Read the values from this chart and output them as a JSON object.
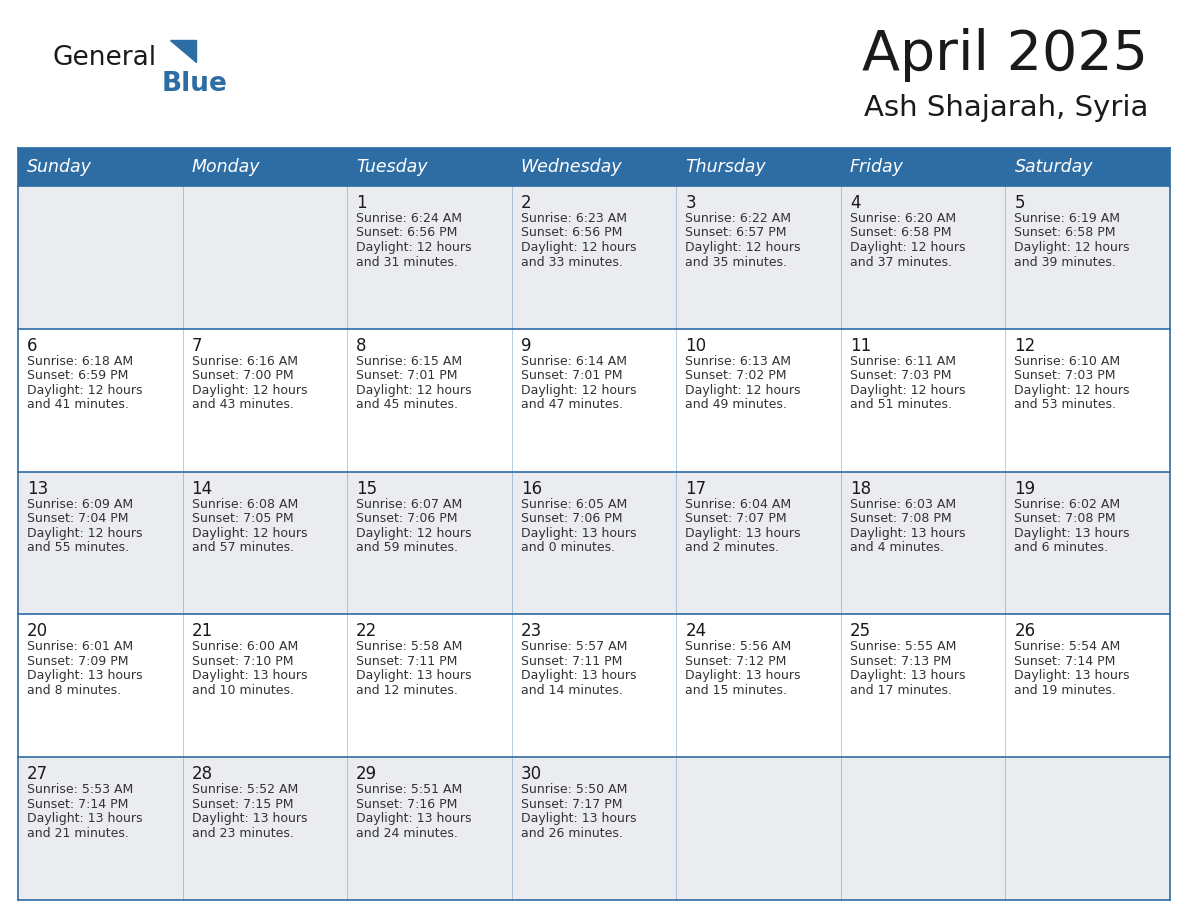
{
  "title": "April 2025",
  "subtitle": "Ash Shajarah, Syria",
  "header_bg_color": "#2E6DA4",
  "header_text_color": "#FFFFFF",
  "day_names": [
    "Sunday",
    "Monday",
    "Tuesday",
    "Wednesday",
    "Thursday",
    "Friday",
    "Saturday"
  ],
  "row_bg_odd": "#EAECF0",
  "row_bg_even": "#FFFFFF",
  "border_color": "#2E6DA4",
  "text_color": "#333333",
  "calendar_data": [
    [
      {
        "day": null,
        "sunrise": null,
        "sunset": null,
        "daylight": null
      },
      {
        "day": null,
        "sunrise": null,
        "sunset": null,
        "daylight": null
      },
      {
        "day": 1,
        "sunrise": "6:24 AM",
        "sunset": "6:56 PM",
        "daylight": "12 hours\nand 31 minutes."
      },
      {
        "day": 2,
        "sunrise": "6:23 AM",
        "sunset": "6:56 PM",
        "daylight": "12 hours\nand 33 minutes."
      },
      {
        "day": 3,
        "sunrise": "6:22 AM",
        "sunset": "6:57 PM",
        "daylight": "12 hours\nand 35 minutes."
      },
      {
        "day": 4,
        "sunrise": "6:20 AM",
        "sunset": "6:58 PM",
        "daylight": "12 hours\nand 37 minutes."
      },
      {
        "day": 5,
        "sunrise": "6:19 AM",
        "sunset": "6:58 PM",
        "daylight": "12 hours\nand 39 minutes."
      }
    ],
    [
      {
        "day": 6,
        "sunrise": "6:18 AM",
        "sunset": "6:59 PM",
        "daylight": "12 hours\nand 41 minutes."
      },
      {
        "day": 7,
        "sunrise": "6:16 AM",
        "sunset": "7:00 PM",
        "daylight": "12 hours\nand 43 minutes."
      },
      {
        "day": 8,
        "sunrise": "6:15 AM",
        "sunset": "7:01 PM",
        "daylight": "12 hours\nand 45 minutes."
      },
      {
        "day": 9,
        "sunrise": "6:14 AM",
        "sunset": "7:01 PM",
        "daylight": "12 hours\nand 47 minutes."
      },
      {
        "day": 10,
        "sunrise": "6:13 AM",
        "sunset": "7:02 PM",
        "daylight": "12 hours\nand 49 minutes."
      },
      {
        "day": 11,
        "sunrise": "6:11 AM",
        "sunset": "7:03 PM",
        "daylight": "12 hours\nand 51 minutes."
      },
      {
        "day": 12,
        "sunrise": "6:10 AM",
        "sunset": "7:03 PM",
        "daylight": "12 hours\nand 53 minutes."
      }
    ],
    [
      {
        "day": 13,
        "sunrise": "6:09 AM",
        "sunset": "7:04 PM",
        "daylight": "12 hours\nand 55 minutes."
      },
      {
        "day": 14,
        "sunrise": "6:08 AM",
        "sunset": "7:05 PM",
        "daylight": "12 hours\nand 57 minutes."
      },
      {
        "day": 15,
        "sunrise": "6:07 AM",
        "sunset": "7:06 PM",
        "daylight": "12 hours\nand 59 minutes."
      },
      {
        "day": 16,
        "sunrise": "6:05 AM",
        "sunset": "7:06 PM",
        "daylight": "13 hours\nand 0 minutes."
      },
      {
        "day": 17,
        "sunrise": "6:04 AM",
        "sunset": "7:07 PM",
        "daylight": "13 hours\nand 2 minutes."
      },
      {
        "day": 18,
        "sunrise": "6:03 AM",
        "sunset": "7:08 PM",
        "daylight": "13 hours\nand 4 minutes."
      },
      {
        "day": 19,
        "sunrise": "6:02 AM",
        "sunset": "7:08 PM",
        "daylight": "13 hours\nand 6 minutes."
      }
    ],
    [
      {
        "day": 20,
        "sunrise": "6:01 AM",
        "sunset": "7:09 PM",
        "daylight": "13 hours\nand 8 minutes."
      },
      {
        "day": 21,
        "sunrise": "6:00 AM",
        "sunset": "7:10 PM",
        "daylight": "13 hours\nand 10 minutes."
      },
      {
        "day": 22,
        "sunrise": "5:58 AM",
        "sunset": "7:11 PM",
        "daylight": "13 hours\nand 12 minutes."
      },
      {
        "day": 23,
        "sunrise": "5:57 AM",
        "sunset": "7:11 PM",
        "daylight": "13 hours\nand 14 minutes."
      },
      {
        "day": 24,
        "sunrise": "5:56 AM",
        "sunset": "7:12 PM",
        "daylight": "13 hours\nand 15 minutes."
      },
      {
        "day": 25,
        "sunrise": "5:55 AM",
        "sunset": "7:13 PM",
        "daylight": "13 hours\nand 17 minutes."
      },
      {
        "day": 26,
        "sunrise": "5:54 AM",
        "sunset": "7:14 PM",
        "daylight": "13 hours\nand 19 minutes."
      }
    ],
    [
      {
        "day": 27,
        "sunrise": "5:53 AM",
        "sunset": "7:14 PM",
        "daylight": "13 hours\nand 21 minutes."
      },
      {
        "day": 28,
        "sunrise": "5:52 AM",
        "sunset": "7:15 PM",
        "daylight": "13 hours\nand 23 minutes."
      },
      {
        "day": 29,
        "sunrise": "5:51 AM",
        "sunset": "7:16 PM",
        "daylight": "13 hours\nand 24 minutes."
      },
      {
        "day": 30,
        "sunrise": "5:50 AM",
        "sunset": "7:17 PM",
        "daylight": "13 hours\nand 26 minutes."
      },
      {
        "day": null,
        "sunrise": null,
        "sunset": null,
        "daylight": null
      },
      {
        "day": null,
        "sunrise": null,
        "sunset": null,
        "daylight": null
      },
      {
        "day": null,
        "sunrise": null,
        "sunset": null,
        "daylight": null
      }
    ]
  ]
}
